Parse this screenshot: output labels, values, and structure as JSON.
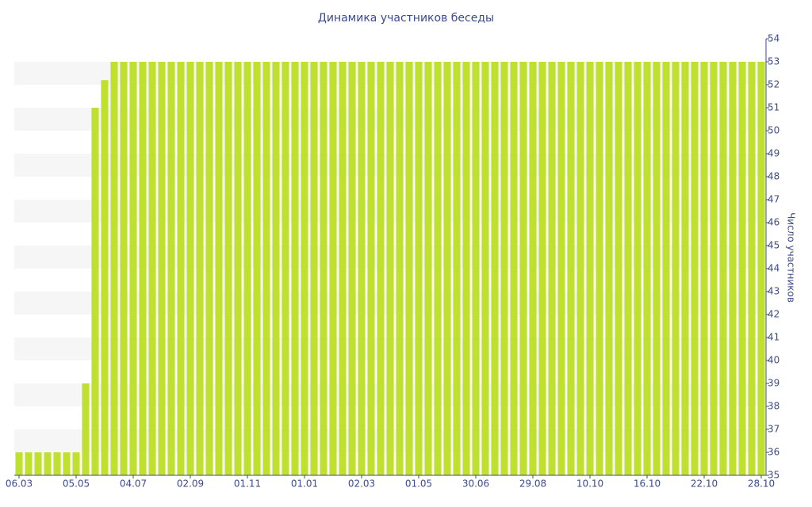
{
  "chart_data": {
    "type": "bar",
    "title": "Динамика участников беседы",
    "y_axis_label": "Число участников",
    "categories": [
      "06.03",
      null,
      null,
      null,
      null,
      null,
      "05.05",
      null,
      null,
      null,
      null,
      null,
      "04.07",
      null,
      null,
      null,
      null,
      null,
      "02.09",
      null,
      null,
      null,
      null,
      null,
      "01.11",
      null,
      null,
      null,
      null,
      null,
      "01.01",
      null,
      null,
      null,
      null,
      null,
      "02.03",
      null,
      null,
      null,
      null,
      null,
      "01.05",
      null,
      null,
      null,
      null,
      null,
      "30.06",
      null,
      null,
      null,
      null,
      null,
      "29.08",
      null,
      null,
      null,
      null,
      null,
      "10.10",
      null,
      null,
      null,
      null,
      null,
      "16.10",
      null,
      null,
      null,
      null,
      null,
      "22.10",
      null,
      null,
      null,
      null,
      null,
      "28.10"
    ],
    "values": [
      36,
      36,
      36,
      36,
      36,
      36,
      36,
      39,
      51,
      52.2,
      53,
      53,
      53,
      53,
      53,
      53,
      53,
      53,
      53,
      53,
      53,
      53,
      53,
      53,
      53,
      53,
      53,
      53,
      53,
      53,
      53,
      53,
      53,
      53,
      53,
      53,
      53,
      53,
      53,
      53,
      53,
      53,
      53,
      53,
      53,
      53,
      53,
      53,
      53,
      53,
      53,
      53,
      53,
      53,
      53,
      53,
      53,
      53,
      53,
      53,
      53,
      53,
      53,
      53,
      53,
      53,
      53,
      53,
      53,
      53,
      53,
      53,
      53,
      53,
      53,
      53,
      53,
      53,
      53
    ],
    "color": "#c0e030",
    "ylim": [
      35,
      54
    ],
    "yticks": [
      35,
      36,
      37,
      38,
      39,
      40,
      41,
      42,
      43,
      44,
      45,
      46,
      47,
      48,
      49,
      50,
      51,
      52,
      53,
      54
    ],
    "y_axis_side": "right",
    "grid": true
  }
}
